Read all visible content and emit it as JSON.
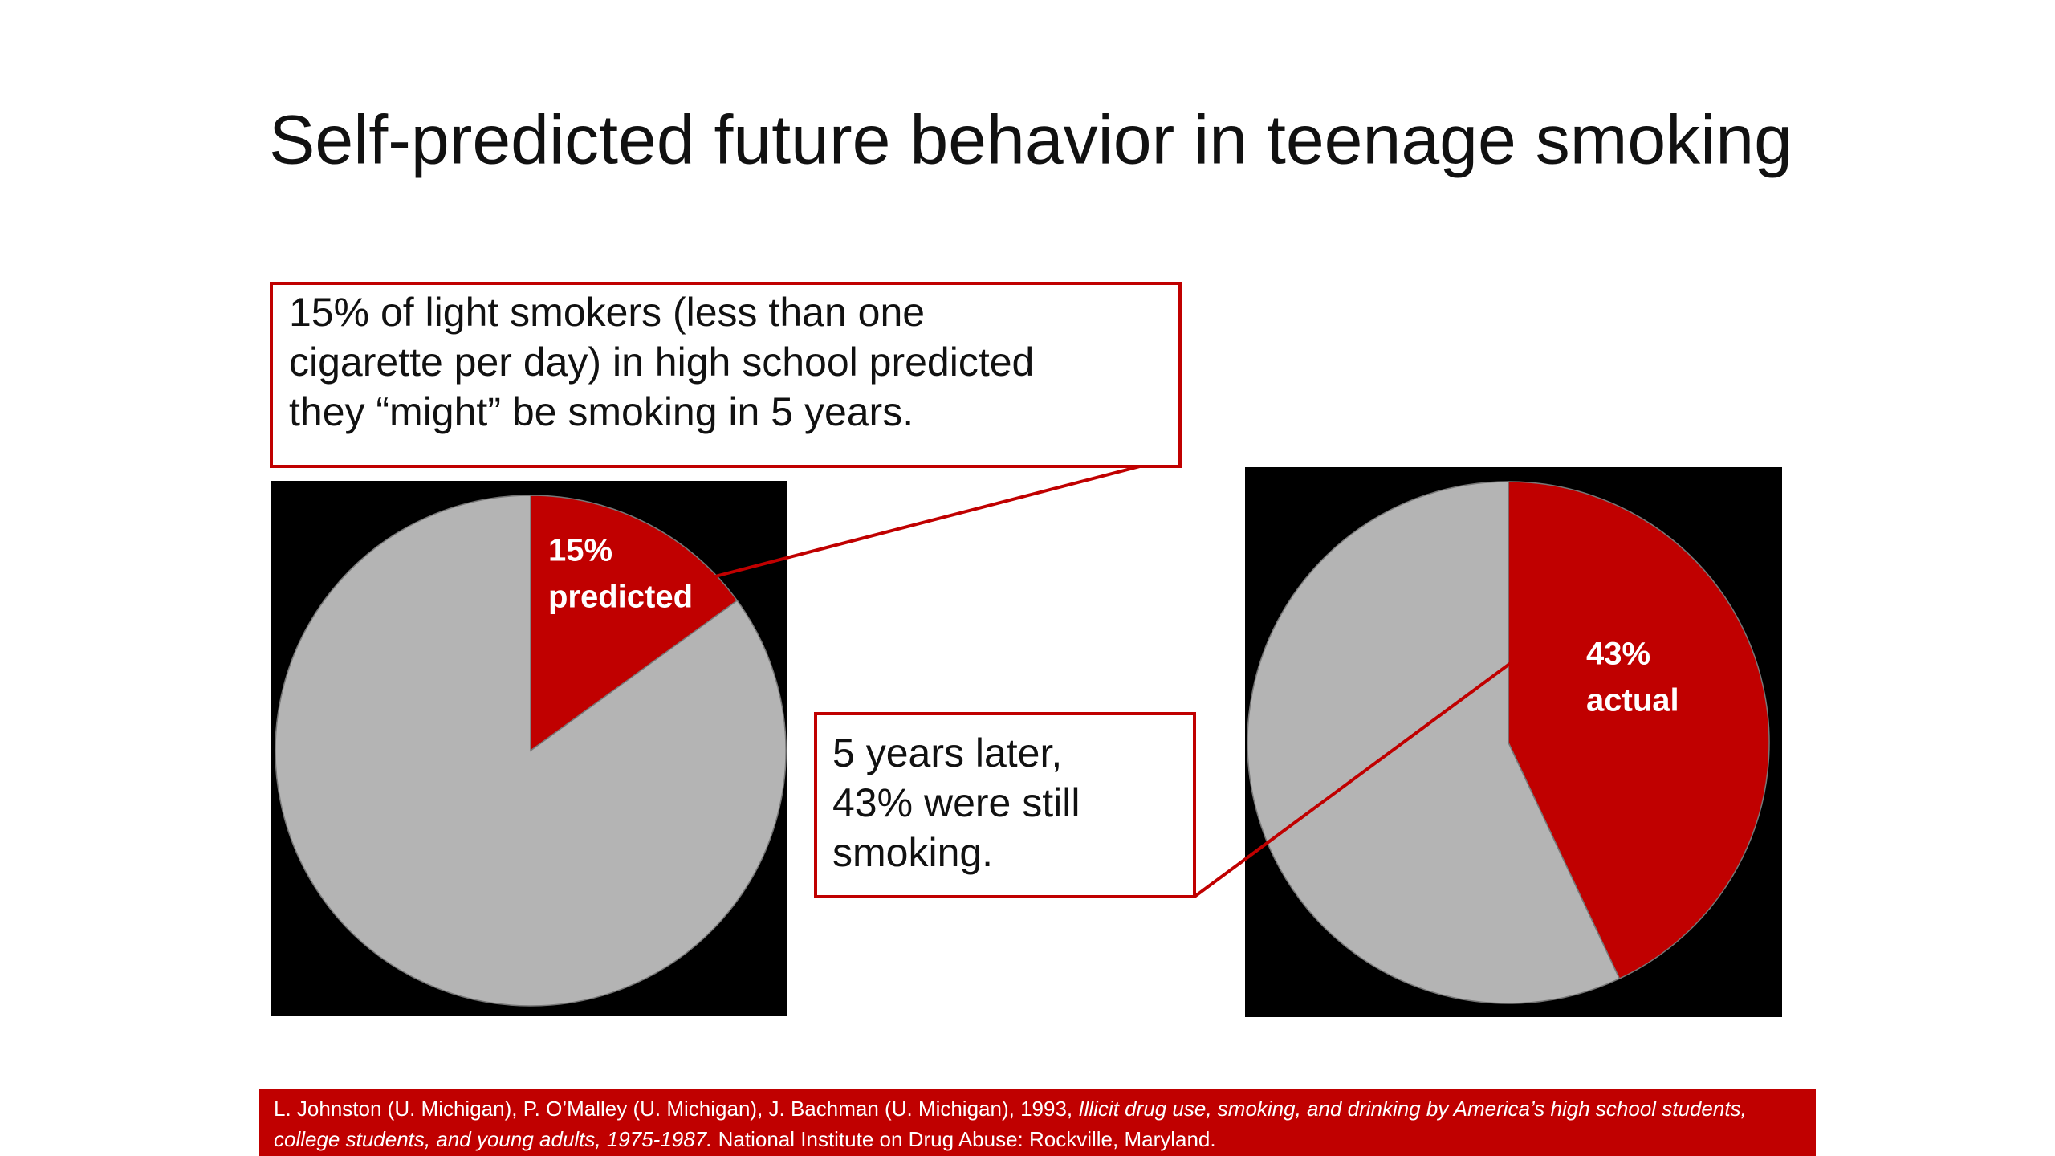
{
  "title": "Self-predicted future behavior in teenage smoking",
  "chart_data": [
    {
      "type": "pie",
      "categories": [
        "predicted",
        null
      ],
      "values": [
        15,
        85
      ],
      "value_labels": [
        "15%",
        null
      ],
      "colors": [
        "#c00000",
        "#b4b4b4"
      ]
    },
    {
      "type": "pie",
      "categories": [
        "actual",
        null
      ],
      "values": [
        43,
        57
      ],
      "value_labels": [
        "43%",
        null
      ],
      "colors": [
        "#c00000",
        "#b4b4b4"
      ]
    }
  ],
  "callouts": [
    {
      "lines": [
        "15% of light smokers (less than one",
        "cigarette per day) in high school predicted",
        "they “might” be smoking in 5 years."
      ]
    },
    {
      "lines": [
        "5 years later,",
        "43% were still",
        "smoking."
      ]
    }
  ],
  "citation": {
    "authors": "L. Johnston (U. Michigan), P. O’Malley (U. Michigan), J. Bachman (U. Michigan), 1993,",
    "work": "Illicit drug use, smoking, and drinking by America’s  high school students, college students, and young adults, 1975-1987.",
    "publisher": "National Institute on Drug Abuse: Rockville, Maryland."
  }
}
